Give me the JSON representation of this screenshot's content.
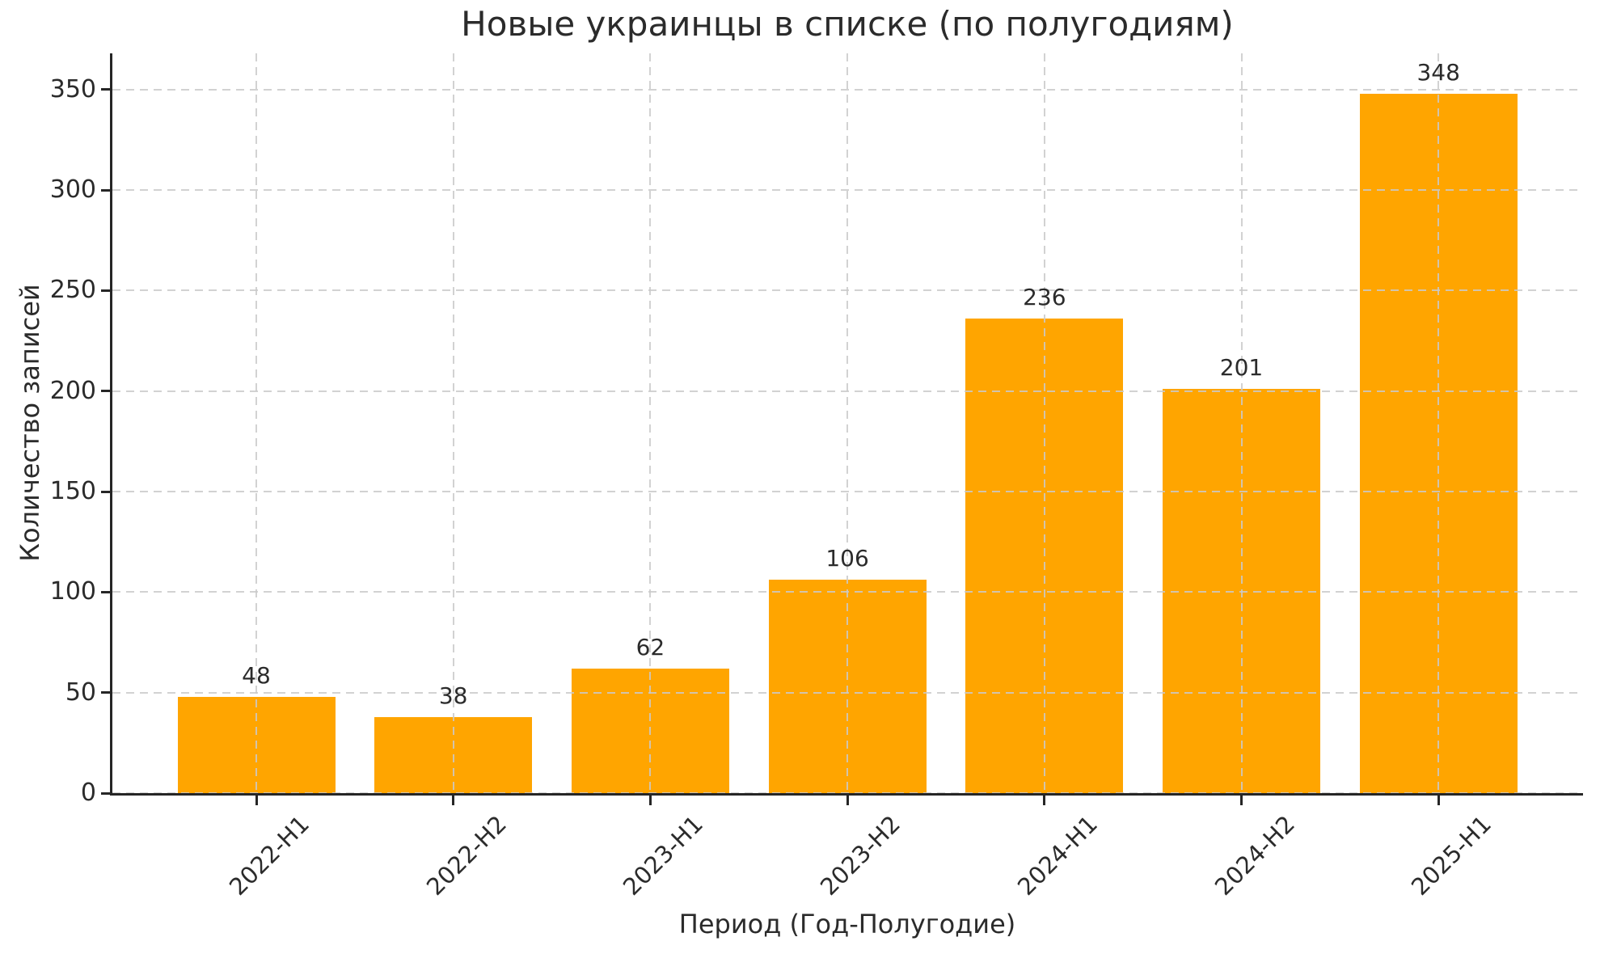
{
  "chart_data": {
    "type": "bar",
    "title": "Новые украинцы в списке (по полугодиям)",
    "xlabel": "Период (Год-Полугодие)",
    "ylabel": "Количество записей",
    "categories": [
      "2022-H1",
      "2022-H2",
      "2023-H1",
      "2023-H2",
      "2024-H1",
      "2024-H2",
      "2025-H1"
    ],
    "values": [
      48,
      38,
      62,
      106,
      236,
      201,
      348
    ],
    "yticks": [
      0,
      50,
      100,
      150,
      200,
      250,
      300,
      350
    ],
    "ylim": [
      0,
      368
    ],
    "bar_color": "#FFA500",
    "grid": true,
    "grid_style": "dashed",
    "grid_color": "#cccccc",
    "grid_on_top_of_bars": true,
    "bar_value_labels_shown": true,
    "xtick_rotation_deg": 45,
    "legend_position": "none",
    "text_color": "#2b2b2b"
  }
}
